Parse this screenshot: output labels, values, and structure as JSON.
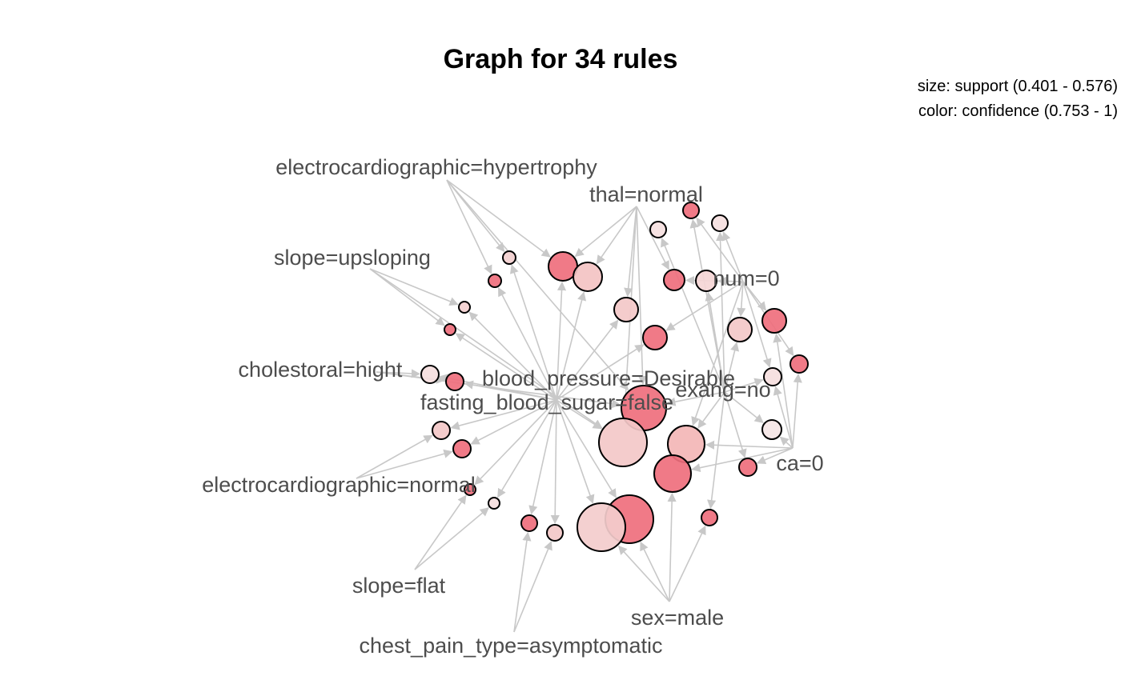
{
  "title": "Graph for 34 rules",
  "legend": {
    "size": "size: support (0.401 - 0.576)",
    "color": "color: confidence (0.753 - 1)"
  },
  "colors": {
    "edge": "#c8c8c8",
    "node_low": "#f3e6e6",
    "node_high": "#ef6f7d",
    "label": "#4d4d4d"
  },
  "items": [
    {
      "id": "hypertrophy",
      "label": "electrocardiographic=hypertrophy"
    },
    {
      "id": "thal",
      "label": "thal=normal"
    },
    {
      "id": "upsloping",
      "label": "slope=upsloping"
    },
    {
      "id": "num0",
      "label": "num=0"
    },
    {
      "id": "chol",
      "label": "cholestoral=hight"
    },
    {
      "id": "bp",
      "label": "blood_pressure=Desirable"
    },
    {
      "id": "exang",
      "label": "exang=no"
    },
    {
      "id": "fbs",
      "label": "fasting_blood_sugar=false"
    },
    {
      "id": "ca0",
      "label": "ca=0"
    },
    {
      "id": "ecgnormal",
      "label": "electrocardiographic=normal"
    },
    {
      "id": "flat",
      "label": "slope=flat"
    },
    {
      "id": "male",
      "label": "sex=male"
    },
    {
      "id": "asymp",
      "label": "chest_pain_type=asymptomatic"
    }
  ]
}
